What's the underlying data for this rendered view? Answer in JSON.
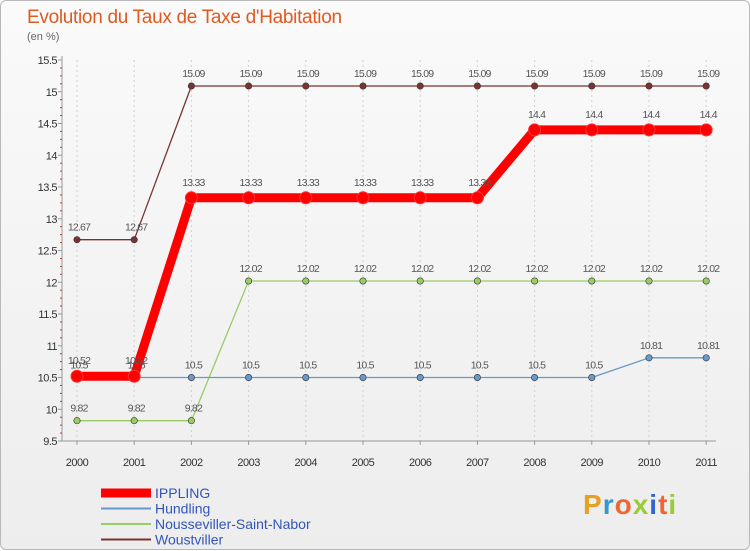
{
  "chart_data": {
    "type": "line",
    "title": "Evolution du Taux de Taxe d'Habitation",
    "subtitle": "(en %)",
    "x": [
      "2000",
      "2001",
      "2002",
      "2003",
      "2004",
      "2005",
      "2006",
      "2007",
      "2008",
      "2009",
      "2010",
      "2011"
    ],
    "ylim": [
      9.5,
      15.5
    ],
    "yticks": [
      "9.5",
      "10",
      "10.5",
      "11",
      "11.5",
      "12",
      "12.5",
      "13",
      "13.5",
      "14",
      "14.5",
      "15",
      "15.5"
    ],
    "series": [
      {
        "name": "IPPLING",
        "color": "#ff0000",
        "values": [
          10.52,
          10.52,
          13.33,
          13.33,
          13.33,
          13.33,
          13.33,
          13.33,
          14.4,
          14.4,
          14.4,
          14.4
        ],
        "labels": [
          "10.52",
          "10.52",
          "13.33",
          "13.33",
          "13.33",
          "13.33",
          "13.33",
          "13.33",
          "14.4",
          "14.4",
          "14.4",
          "14.4"
        ]
      },
      {
        "name": "Hundling",
        "color": "#6699cc",
        "values": [
          10.5,
          10.5,
          10.5,
          10.5,
          10.5,
          10.5,
          10.5,
          10.5,
          10.5,
          10.5,
          10.81,
          10.81
        ],
        "labels": [
          "10.5",
          "10.5",
          "10.5",
          "10.5",
          "10.5",
          "10.5",
          "10.5",
          "10.5",
          "10.5",
          "10.5",
          "10.81",
          "10.81"
        ]
      },
      {
        "name": "Nousseviller-Saint-Nabor",
        "color": "#99cc66",
        "values": [
          9.82,
          9.82,
          9.82,
          12.02,
          12.02,
          12.02,
          12.02,
          12.02,
          12.02,
          12.02,
          12.02,
          12.02
        ],
        "labels": [
          "9.82",
          "9.82",
          "9.82",
          "12.02",
          "12.02",
          "12.02",
          "12.02",
          "12.02",
          "12.02",
          "12.02",
          "12.02",
          "12.02"
        ]
      },
      {
        "name": "Woustviller",
        "color": "#7a3333",
        "values": [
          12.67,
          12.67,
          15.09,
          15.09,
          15.09,
          15.09,
          15.09,
          15.09,
          15.09,
          15.09,
          15.09,
          15.09
        ],
        "labels": [
          "12.67",
          "12.67",
          "15.09",
          "15.09",
          "15.09",
          "15.09",
          "15.09",
          "15.09",
          "15.09",
          "15.09",
          "15.09",
          "15.09"
        ]
      }
    ]
  },
  "brand": {
    "letters": [
      "P",
      "r",
      "o",
      "x",
      "i",
      "t",
      "i"
    ],
    "colors": [
      "#e8a020",
      "#3399cc",
      "#ee6633",
      "#99cc33",
      "#3366cc",
      "#ee6633",
      "#99cc33"
    ]
  }
}
